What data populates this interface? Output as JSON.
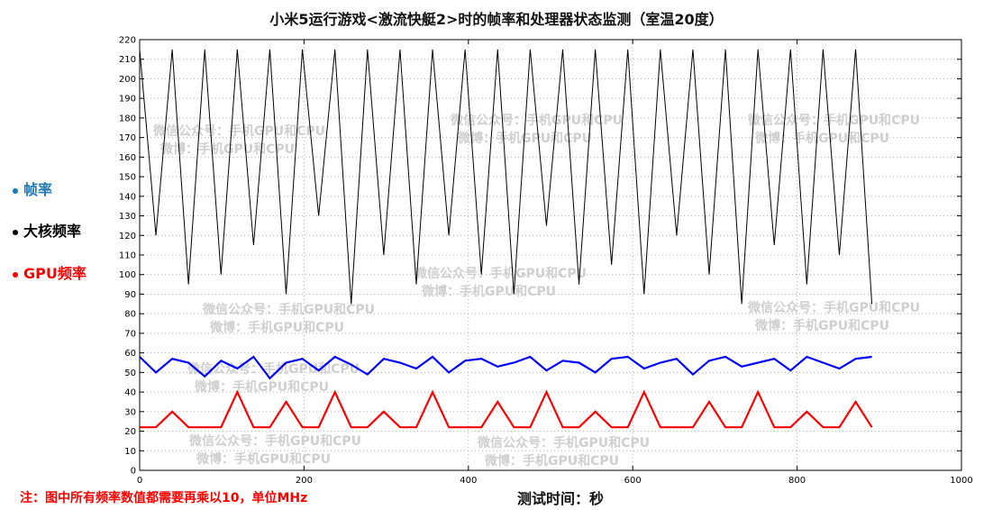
{
  "chart_data": {
    "type": "line",
    "title": "小米5运行游戏<激流快艇2>时的帧率和处理器状态监测（室温20度）",
    "xlabel": "测试时间：秒",
    "ylabel": "",
    "xlim": [
      0,
      1000
    ],
    "ylim": [
      0,
      220
    ],
    "x_ticks": [
      "0",
      "200",
      "400",
      "600",
      "800",
      "1000"
    ],
    "y_ticks": [
      "0",
      "10",
      "20",
      "30",
      "40",
      "50",
      "60",
      "70",
      "80",
      "90",
      "100",
      "110",
      "120",
      "130",
      "140",
      "150",
      "160",
      "170",
      "180",
      "190",
      "200",
      "210",
      "220"
    ],
    "grid": true,
    "legend_position": "left",
    "x": [
      0,
      20,
      40,
      60,
      80,
      100,
      120,
      140,
      160,
      180,
      200,
      220,
      240,
      260,
      280,
      300,
      320,
      340,
      360,
      380,
      400,
      420,
      440,
      460,
      480,
      500,
      520,
      540,
      560,
      580,
      600,
      620,
      640,
      660,
      680,
      700,
      720,
      740,
      760,
      780,
      800,
      820,
      840,
      860,
      880,
      900
    ],
    "series": [
      {
        "name": "大核频率",
        "color": "#000000",
        "values": [
          215,
          120,
          215,
          95,
          215,
          100,
          215,
          115,
          215,
          90,
          215,
          130,
          215,
          85,
          215,
          110,
          215,
          95,
          215,
          120,
          215,
          100,
          215,
          90,
          215,
          125,
          215,
          95,
          215,
          105,
          215,
          90,
          215,
          120,
          215,
          100,
          215,
          85,
          215,
          115,
          215,
          95,
          215,
          110,
          215,
          85
        ]
      },
      {
        "name": "帧率",
        "color": "#0000ff",
        "values": [
          58,
          50,
          57,
          55,
          48,
          56,
          52,
          58,
          47,
          55,
          57,
          51,
          58,
          54,
          49,
          57,
          55,
          52,
          58,
          50,
          56,
          57,
          53,
          55,
          58,
          51,
          56,
          55,
          50,
          57,
          58,
          52,
          55,
          57,
          49,
          56,
          58,
          53,
          55,
          57,
          51,
          58,
          55,
          52,
          57,
          58
        ]
      },
      {
        "name": "GPU频率",
        "color": "#ff0000",
        "values": [
          22,
          22,
          30,
          22,
          22,
          22,
          40,
          22,
          22,
          35,
          22,
          22,
          40,
          22,
          22,
          30,
          22,
          22,
          40,
          22,
          22,
          22,
          35,
          22,
          22,
          40,
          22,
          22,
          30,
          22,
          22,
          40,
          22,
          22,
          22,
          35,
          22,
          22,
          40,
          22,
          22,
          30,
          22,
          22,
          35,
          22
        ]
      }
    ]
  },
  "legend": [
    {
      "label": "帧率",
      "color": "#1f77b4"
    },
    {
      "label": "大核频率",
      "color": "#000000"
    },
    {
      "label": "GPU频率",
      "color": "#ff0000"
    }
  ],
  "footnote": "注：图中所有频率数值都需要再乘以10，单位MHz",
  "footnote_color": "#ff0000",
  "watermark": {
    "line1": "微信公众号：手机GPU和CPU",
    "line2": "微博：手机GPU和CPU"
  }
}
